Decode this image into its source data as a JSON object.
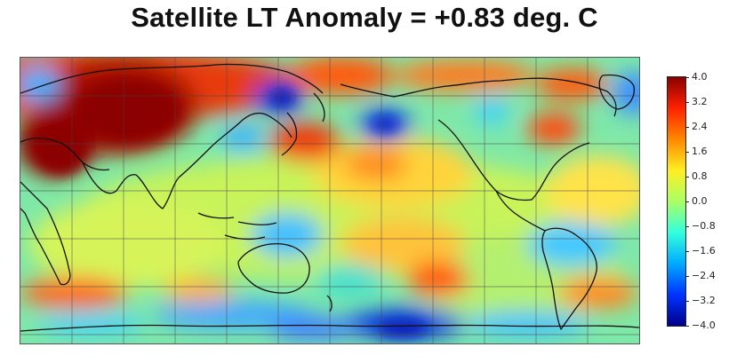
{
  "title": "Satellite LT Anomaly = +0.83 deg. C",
  "colorbar": {
    "ticks": [
      "4.0",
      "3.2",
      "2.4",
      "1.6",
      "0.8",
      "0.0",
      "−0.8",
      "−1.6",
      "−2.4",
      "−3.2",
      "−4.0"
    ],
    "range": [
      -4.0,
      4.0
    ],
    "colors": [
      "#00008b",
      "#0033ff",
      "#00aaff",
      "#33ffdd",
      "#aaff66",
      "#ffee22",
      "#ff8800",
      "#ff2200",
      "#8b0000"
    ]
  },
  "map": {
    "projection": "equirectangular, Pacific-centered",
    "grid": true,
    "coastlines": true
  }
}
